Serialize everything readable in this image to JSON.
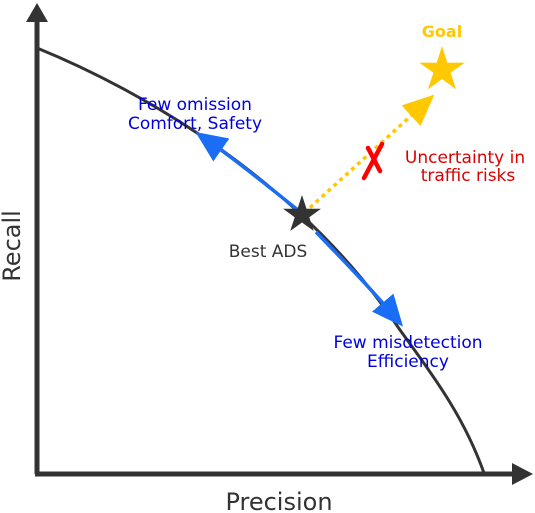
{
  "axes": {
    "x_label": "Precision",
    "y_label": "Recall"
  },
  "labels": {
    "goal": "Goal",
    "best_ads": "Best ADS",
    "few_omission": [
      "Few omission",
      "Comfort, Safety"
    ],
    "few_misdetection": [
      "Few misdetection",
      "Efficiency"
    ],
    "uncertainty": [
      "Uncertainty in",
      "traffic risks"
    ]
  },
  "colors": {
    "axis": "#333333",
    "curve": "#333333",
    "arrow": "#1a6ef5",
    "goal": "#ffc800",
    "blue_text": "#0000dd",
    "uncertainty_text": "#dd0000",
    "cross": "#ff0000",
    "best_star": "#333333"
  },
  "icons": {
    "goal_marker": "star-icon",
    "best_marker": "star-icon",
    "blocked_marker": "cross-icon"
  }
}
